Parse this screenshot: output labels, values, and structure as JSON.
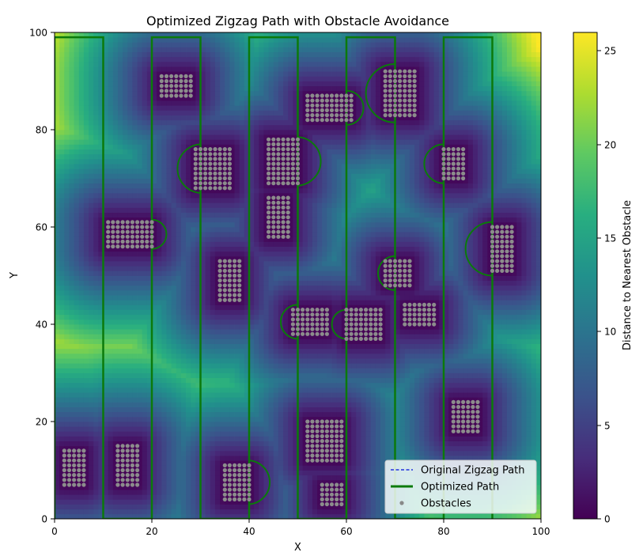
{
  "chart_data": {
    "type": "heatmap",
    "title": "Optimized Zigzag Path with Obstacle Avoidance",
    "xlabel": "X",
    "ylabel": "Y",
    "xlim": [
      0,
      100
    ],
    "ylim": [
      0,
      100
    ],
    "x_ticks": [
      "0",
      "20",
      "40",
      "60",
      "80",
      "100"
    ],
    "y_ticks": [
      "0",
      "20",
      "40",
      "60",
      "80",
      "100"
    ],
    "colorbar": {
      "label": "Distance to Nearest Obstacle",
      "range": [
        0,
        26
      ],
      "ticks": [
        "0",
        "5",
        "10",
        "15",
        "20",
        "25"
      ],
      "colormap": "viridis"
    },
    "legend": {
      "position": "lower-right",
      "entries": [
        {
          "label": "Original Zigzag Path",
          "style": "dashed",
          "color": "#2233dd"
        },
        {
          "label": "Optimized Path",
          "style": "solid",
          "color": "#0b7a0b"
        },
        {
          "label": "Obstacles",
          "style": "marker",
          "color": "#888888"
        }
      ]
    },
    "obstacles": [
      {
        "x0": 2,
        "x1": 6,
        "y0": 7,
        "y1": 14,
        "name": "obstacle-1"
      },
      {
        "x0": 13,
        "x1": 17,
        "y0": 7,
        "y1": 15,
        "name": "obstacle-2"
      },
      {
        "x0": 11,
        "x1": 20,
        "y0": 56,
        "y1": 61,
        "name": "obstacle-3"
      },
      {
        "x0": 22,
        "x1": 28,
        "y0": 87,
        "y1": 91,
        "name": "obstacle-4"
      },
      {
        "x0": 29,
        "x1": 36,
        "y0": 68,
        "y1": 76,
        "name": "obstacle-5"
      },
      {
        "x0": 34,
        "x1": 38,
        "y0": 45,
        "y1": 53,
        "name": "obstacle-6"
      },
      {
        "x0": 35,
        "x1": 40,
        "y0": 4,
        "y1": 11,
        "name": "obstacle-7"
      },
      {
        "x0": 44,
        "x1": 50,
        "y0": 69,
        "y1": 78,
        "name": "obstacle-8"
      },
      {
        "x0": 44,
        "x1": 48,
        "y0": 58,
        "y1": 66,
        "name": "obstacle-9"
      },
      {
        "x0": 49,
        "x1": 56,
        "y0": 38,
        "y1": 43,
        "name": "obstacle-10"
      },
      {
        "x0": 52,
        "x1": 59,
        "y0": 12,
        "y1": 20,
        "name": "obstacle-11"
      },
      {
        "x0": 55,
        "x1": 59,
        "y0": 3,
        "y1": 7,
        "name": "obstacle-12"
      },
      {
        "x0": 52,
        "x1": 61,
        "y0": 82,
        "y1": 87,
        "name": "obstacle-13"
      },
      {
        "x0": 60,
        "x1": 67,
        "y0": 37,
        "y1": 43,
        "name": "obstacle-14"
      },
      {
        "x0": 68,
        "x1": 74,
        "y0": 83,
        "y1": 92,
        "name": "obstacle-15"
      },
      {
        "x0": 68,
        "x1": 73,
        "y0": 48,
        "y1": 53,
        "name": "obstacle-16"
      },
      {
        "x0": 72,
        "x1": 78,
        "y0": 40,
        "y1": 44,
        "name": "obstacle-17"
      },
      {
        "x0": 80,
        "x1": 84,
        "y0": 70,
        "y1": 76,
        "name": "obstacle-18"
      },
      {
        "x0": 82,
        "x1": 87,
        "y0": 18,
        "y1": 24,
        "name": "obstacle-19"
      },
      {
        "x0": 90,
        "x1": 94,
        "y0": 51,
        "y1": 60,
        "name": "obstacle-20"
      }
    ],
    "original_path": [
      [
        0,
        0
      ],
      [
        0,
        99
      ],
      [
        10,
        99
      ],
      [
        10,
        0
      ],
      [
        20,
        0
      ],
      [
        20,
        99
      ],
      [
        30,
        99
      ],
      [
        30,
        0
      ],
      [
        40,
        0
      ],
      [
        40,
        99
      ],
      [
        50,
        99
      ],
      [
        50,
        0
      ],
      [
        60,
        0
      ],
      [
        60,
        99
      ],
      [
        70,
        99
      ],
      [
        70,
        0
      ],
      [
        80,
        0
      ],
      [
        80,
        99
      ],
      [
        90,
        99
      ],
      [
        90,
        0
      ]
    ],
    "detours": [
      {
        "x": 20,
        "y": 58.5,
        "r": 3,
        "dir": 1
      },
      {
        "x": 30,
        "y": 72,
        "r": 5,
        "dir": -1
      },
      {
        "x": 40,
        "y": 7.5,
        "r": 4.5,
        "dir": 1
      },
      {
        "x": 50,
        "y": 73.5,
        "r": 5,
        "dir": 1
      },
      {
        "x": 50,
        "y": 40.5,
        "r": 3.5,
        "dir": -1
      },
      {
        "x": 60,
        "y": 84.5,
        "r": 3.5,
        "dir": 1
      },
      {
        "x": 60,
        "y": 40,
        "r": 3,
        "dir": -1
      },
      {
        "x": 70,
        "y": 87.5,
        "r": 6,
        "dir": -1
      },
      {
        "x": 70,
        "y": 50.5,
        "r": 3.5,
        "dir": -1
      },
      {
        "x": 80,
        "y": 73,
        "r": 4,
        "dir": -1
      },
      {
        "x": 90,
        "y": 55.5,
        "r": 5.5,
        "dir": -1
      }
    ]
  }
}
